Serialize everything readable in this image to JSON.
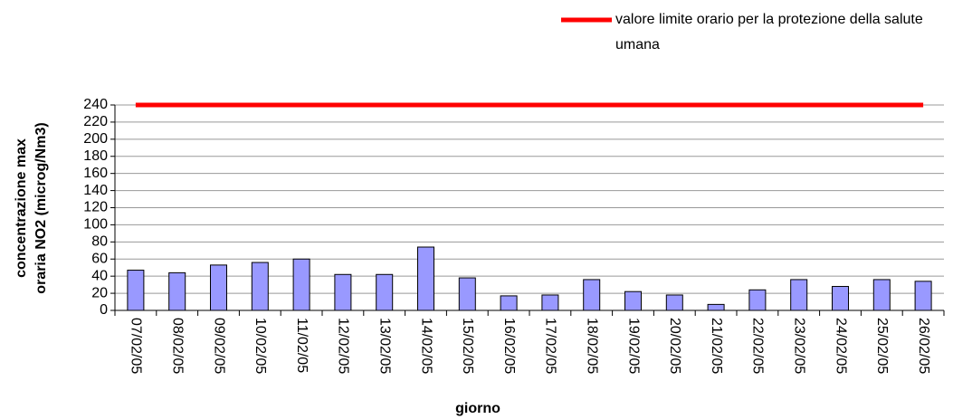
{
  "chart_data": {
    "type": "bar",
    "categories": [
      "07/02/05",
      "08/02/05",
      "09/02/05",
      "10/02/05",
      "11/02/05",
      "12/02/05",
      "13/02/05",
      "14/02/05",
      "15/02/05",
      "16/02/05",
      "17/02/05",
      "18/02/05",
      "19/02/05",
      "20/02/05",
      "21/02/05",
      "22/02/05",
      "23/02/05",
      "24/02/05",
      "25/02/05",
      "26/02/05"
    ],
    "series": [
      {
        "type": "bar",
        "color": "#9999ff",
        "values": [
          47,
          44,
          53,
          56,
          60,
          42,
          42,
          74,
          38,
          17,
          18,
          36,
          22,
          18,
          7,
          24,
          36,
          28,
          36,
          34
        ]
      },
      {
        "type": "line",
        "name": "valore limite orario per la protezione della salute umana",
        "color": "#ff0000",
        "values": [
          240,
          240,
          240,
          240,
          240,
          240,
          240,
          240,
          240,
          240,
          240,
          240,
          240,
          240,
          240,
          240,
          240,
          240,
          240,
          240
        ]
      }
    ],
    "xlabel": "giorno",
    "ylabel": [
      "concentrazione max",
      "oraria NO2 (microg/Nm3)"
    ],
    "ylim": [
      0,
      240
    ],
    "yticks": [
      0,
      20,
      40,
      60,
      80,
      100,
      120,
      140,
      160,
      180,
      200,
      220,
      240
    ],
    "grid": true,
    "legend": "top-right"
  }
}
